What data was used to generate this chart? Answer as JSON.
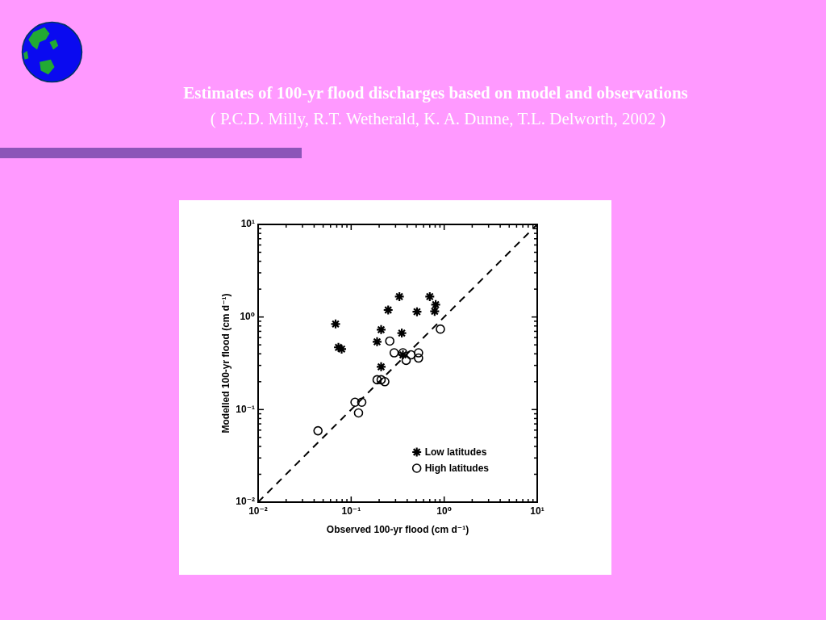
{
  "chart_data": {
    "type": "scatter",
    "title": "Estimates of 100-yr flood discharges based on model and observations",
    "subtitle": "( P.C.D. Milly, R.T. Wetherald, K. A. Dunne, T.L. Delworth, 2002 )",
    "xlabel": "Observed 100-yr flood (cm d⁻¹)",
    "ylabel": "Modelled 100-yr flood (cm d⁻¹)",
    "log": "xy",
    "xlim": [
      0.01,
      10
    ],
    "ylim": [
      0.01,
      10
    ],
    "xticks": [
      {
        "value": 0.01,
        "label": "10⁻²"
      },
      {
        "value": 0.02,
        "label": null
      },
      {
        "value": 0.03,
        "label": null
      },
      {
        "value": 0.04,
        "label": null
      },
      {
        "value": 0.05,
        "label": null
      },
      {
        "value": 0.06,
        "label": null
      },
      {
        "value": 0.07,
        "label": null
      },
      {
        "value": 0.08,
        "label": null
      },
      {
        "value": 0.09,
        "label": null
      },
      {
        "value": 0.1,
        "label": "10⁻¹"
      },
      {
        "value": 0.2,
        "label": null
      },
      {
        "value": 0.3,
        "label": null
      },
      {
        "value": 0.4,
        "label": null
      },
      {
        "value": 0.5,
        "label": null
      },
      {
        "value": 0.6,
        "label": null
      },
      {
        "value": 0.7,
        "label": null
      },
      {
        "value": 0.8,
        "label": null
      },
      {
        "value": 0.9,
        "label": null
      },
      {
        "value": 1,
        "label": "10⁰"
      },
      {
        "value": 2,
        "label": null
      },
      {
        "value": 3,
        "label": null
      },
      {
        "value": 4,
        "label": null
      },
      {
        "value": 5,
        "label": null
      },
      {
        "value": 6,
        "label": null
      },
      {
        "value": 7,
        "label": null
      },
      {
        "value": 8,
        "label": null
      },
      {
        "value": 9,
        "label": null
      },
      {
        "value": 10,
        "label": "10¹"
      }
    ],
    "yticks": [
      {
        "value": 0.01,
        "label": "10⁻²"
      },
      {
        "value": 0.02,
        "label": null
      },
      {
        "value": 0.03,
        "label": null
      },
      {
        "value": 0.04,
        "label": null
      },
      {
        "value": 0.05,
        "label": null
      },
      {
        "value": 0.06,
        "label": null
      },
      {
        "value": 0.07,
        "label": null
      },
      {
        "value": 0.08,
        "label": null
      },
      {
        "value": 0.09,
        "label": null
      },
      {
        "value": 0.1,
        "label": "10⁻¹"
      },
      {
        "value": 0.2,
        "label": null
      },
      {
        "value": 0.3,
        "label": null
      },
      {
        "value": 0.4,
        "label": null
      },
      {
        "value": 0.5,
        "label": null
      },
      {
        "value": 0.6,
        "label": null
      },
      {
        "value": 0.7,
        "label": null
      },
      {
        "value": 0.8,
        "label": null
      },
      {
        "value": 0.9,
        "label": null
      },
      {
        "value": 1,
        "label": "10⁰"
      },
      {
        "value": 2,
        "label": null
      },
      {
        "value": 3,
        "label": null
      },
      {
        "value": 4,
        "label": null
      },
      {
        "value": 5,
        "label": null
      },
      {
        "value": 6,
        "label": null
      },
      {
        "value": 7,
        "label": null
      },
      {
        "value": 8,
        "label": null
      },
      {
        "value": 9,
        "label": null
      },
      {
        "value": 10,
        "label": "10¹"
      }
    ],
    "legend": "bottom right",
    "series": [
      {
        "type": "line",
        "color": "#000000",
        "line_style": "dashed",
        "marker": "none",
        "x": [
          0.01,
          10
        ],
        "values": [
          0.01,
          10
        ]
      },
      {
        "name": "Low latitudes",
        "marker": "cross",
        "color": "#000000",
        "x": [
          0.068,
          0.073,
          0.079,
          0.33,
          0.25,
          0.51,
          0.7,
          0.81,
          0.79,
          0.21,
          0.35,
          0.19,
          0.36,
          0.21
        ],
        "values": [
          0.84,
          0.47,
          0.45,
          1.66,
          1.19,
          1.14,
          1.66,
          1.36,
          1.15,
          0.73,
          0.67,
          0.54,
          0.39,
          0.29
        ]
      },
      {
        "name": "High latitudes",
        "marker": "circle",
        "color": "#000000",
        "x": [
          0.91,
          0.26,
          0.29,
          0.36,
          0.44,
          0.53,
          0.53,
          0.39,
          0.19,
          0.21,
          0.23,
          0.11,
          0.13,
          0.12,
          0.044
        ],
        "values": [
          0.74,
          0.55,
          0.41,
          0.41,
          0.39,
          0.41,
          0.36,
          0.34,
          0.21,
          0.21,
          0.2,
          0.12,
          0.12,
          0.092,
          0.059
        ]
      }
    ]
  }
}
